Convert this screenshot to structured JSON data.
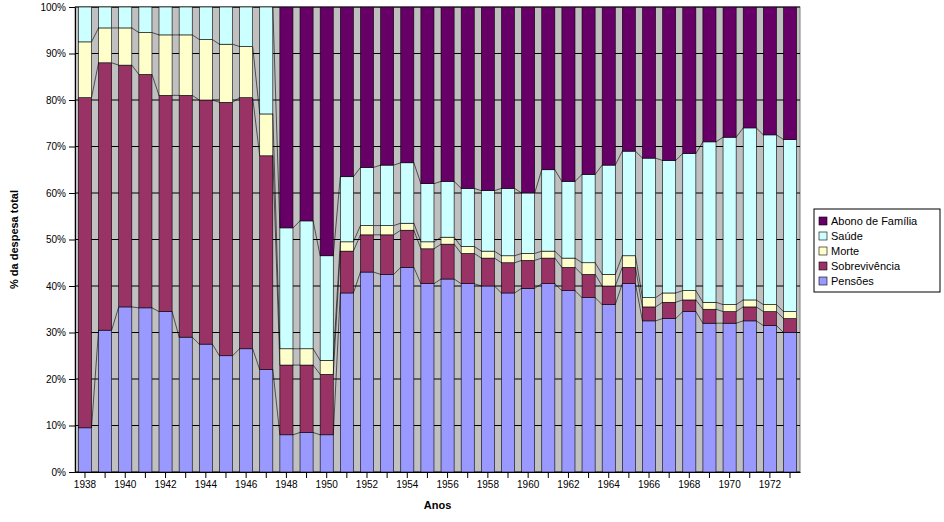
{
  "chart_data": {
    "type": "bar",
    "stacked": true,
    "grid": true,
    "legend": "right",
    "x_label": "Anos",
    "y_label": "% da despesa total",
    "categories": [
      "1938",
      null,
      "1940",
      null,
      "1942",
      null,
      "1944",
      null,
      "1946",
      null,
      "1948",
      null,
      "1950",
      null,
      "1952",
      null,
      "1954",
      null,
      "1956",
      null,
      "1958",
      null,
      "1960",
      null,
      "1962",
      null,
      "1964",
      null,
      "1966",
      null,
      "1968",
      null,
      "1970",
      null,
      "1972",
      null
    ],
    "ylim": [
      0,
      100
    ],
    "yticks": [
      {
        "value": 0,
        "label": "0%"
      },
      {
        "value": 10,
        "label": "10%"
      },
      {
        "value": 20,
        "label": "20%"
      },
      {
        "value": 30,
        "label": "30%"
      },
      {
        "value": 40,
        "label": "40%"
      },
      {
        "value": 50,
        "label": "50%"
      },
      {
        "value": 60,
        "label": "60%"
      },
      {
        "value": 70,
        "label": "70%"
      },
      {
        "value": 80,
        "label": "80%"
      },
      {
        "value": 90,
        "label": "90%"
      },
      {
        "value": 100,
        "label": "100%"
      }
    ],
    "series": [
      {
        "name": "Pensões",
        "color": "#9999ff",
        "values": [
          9.5,
          30.5,
          35.5,
          35.3,
          34.5,
          29,
          27.5,
          25,
          26.5,
          22,
          8,
          8.5,
          8,
          38.5,
          43,
          42.5,
          44,
          40.5,
          41.5,
          40.5,
          40,
          38.5,
          39.5,
          40.5,
          39,
          37.5,
          36,
          40.5,
          32.5,
          33,
          34.5,
          32,
          32,
          32.5,
          31.5,
          30
        ]
      },
      {
        "name": "Sobrevivência",
        "color": "#993366",
        "values": [
          71,
          57.5,
          52,
          50.2,
          46.5,
          52,
          52.5,
          54.5,
          54,
          46,
          15,
          14.5,
          13,
          9,
          8,
          8.5,
          8,
          7.5,
          7.5,
          6.5,
          6,
          6.5,
          6,
          5.5,
          5,
          5,
          4,
          3.5,
          3,
          3.5,
          2.5,
          3,
          2.5,
          3,
          3,
          3
        ]
      },
      {
        "name": "Morte",
        "color": "#ffffcc",
        "values": [
          12,
          7.5,
          8,
          9,
          13,
          13,
          13,
          12.5,
          11,
          9,
          3.5,
          3.5,
          3,
          2,
          2,
          2,
          1.5,
          1.5,
          1.5,
          1.5,
          1.5,
          1.5,
          1.5,
          1.5,
          2,
          2.5,
          2.5,
          2.5,
          2,
          2,
          2,
          1.5,
          1.5,
          1.5,
          1.5,
          1.5
        ]
      },
      {
        "name": "Saúde",
        "color": "#ccffff",
        "values": [
          7.5,
          4.5,
          4.5,
          5.5,
          6,
          6,
          7,
          8,
          8.5,
          23,
          26,
          27.5,
          22.5,
          14,
          12.5,
          13,
          13,
          12.5,
          12,
          12.5,
          13,
          14.5,
          13,
          17.5,
          16.5,
          19,
          23.5,
          22.5,
          30,
          28.5,
          29.5,
          34.5,
          36,
          37,
          36.5,
          37
        ]
      },
      {
        "name": "Abono de Família",
        "color": "#660066",
        "values": [
          0,
          0,
          0,
          0,
          0,
          0,
          0,
          0,
          0,
          0,
          47.5,
          46,
          53.5,
          36.5,
          34.5,
          34,
          33.5,
          38,
          37.5,
          39,
          39.5,
          39,
          40,
          35,
          37.5,
          36,
          34,
          31,
          32.5,
          33,
          31.5,
          29,
          28,
          26,
          27.5,
          28.5
        ]
      }
    ]
  }
}
